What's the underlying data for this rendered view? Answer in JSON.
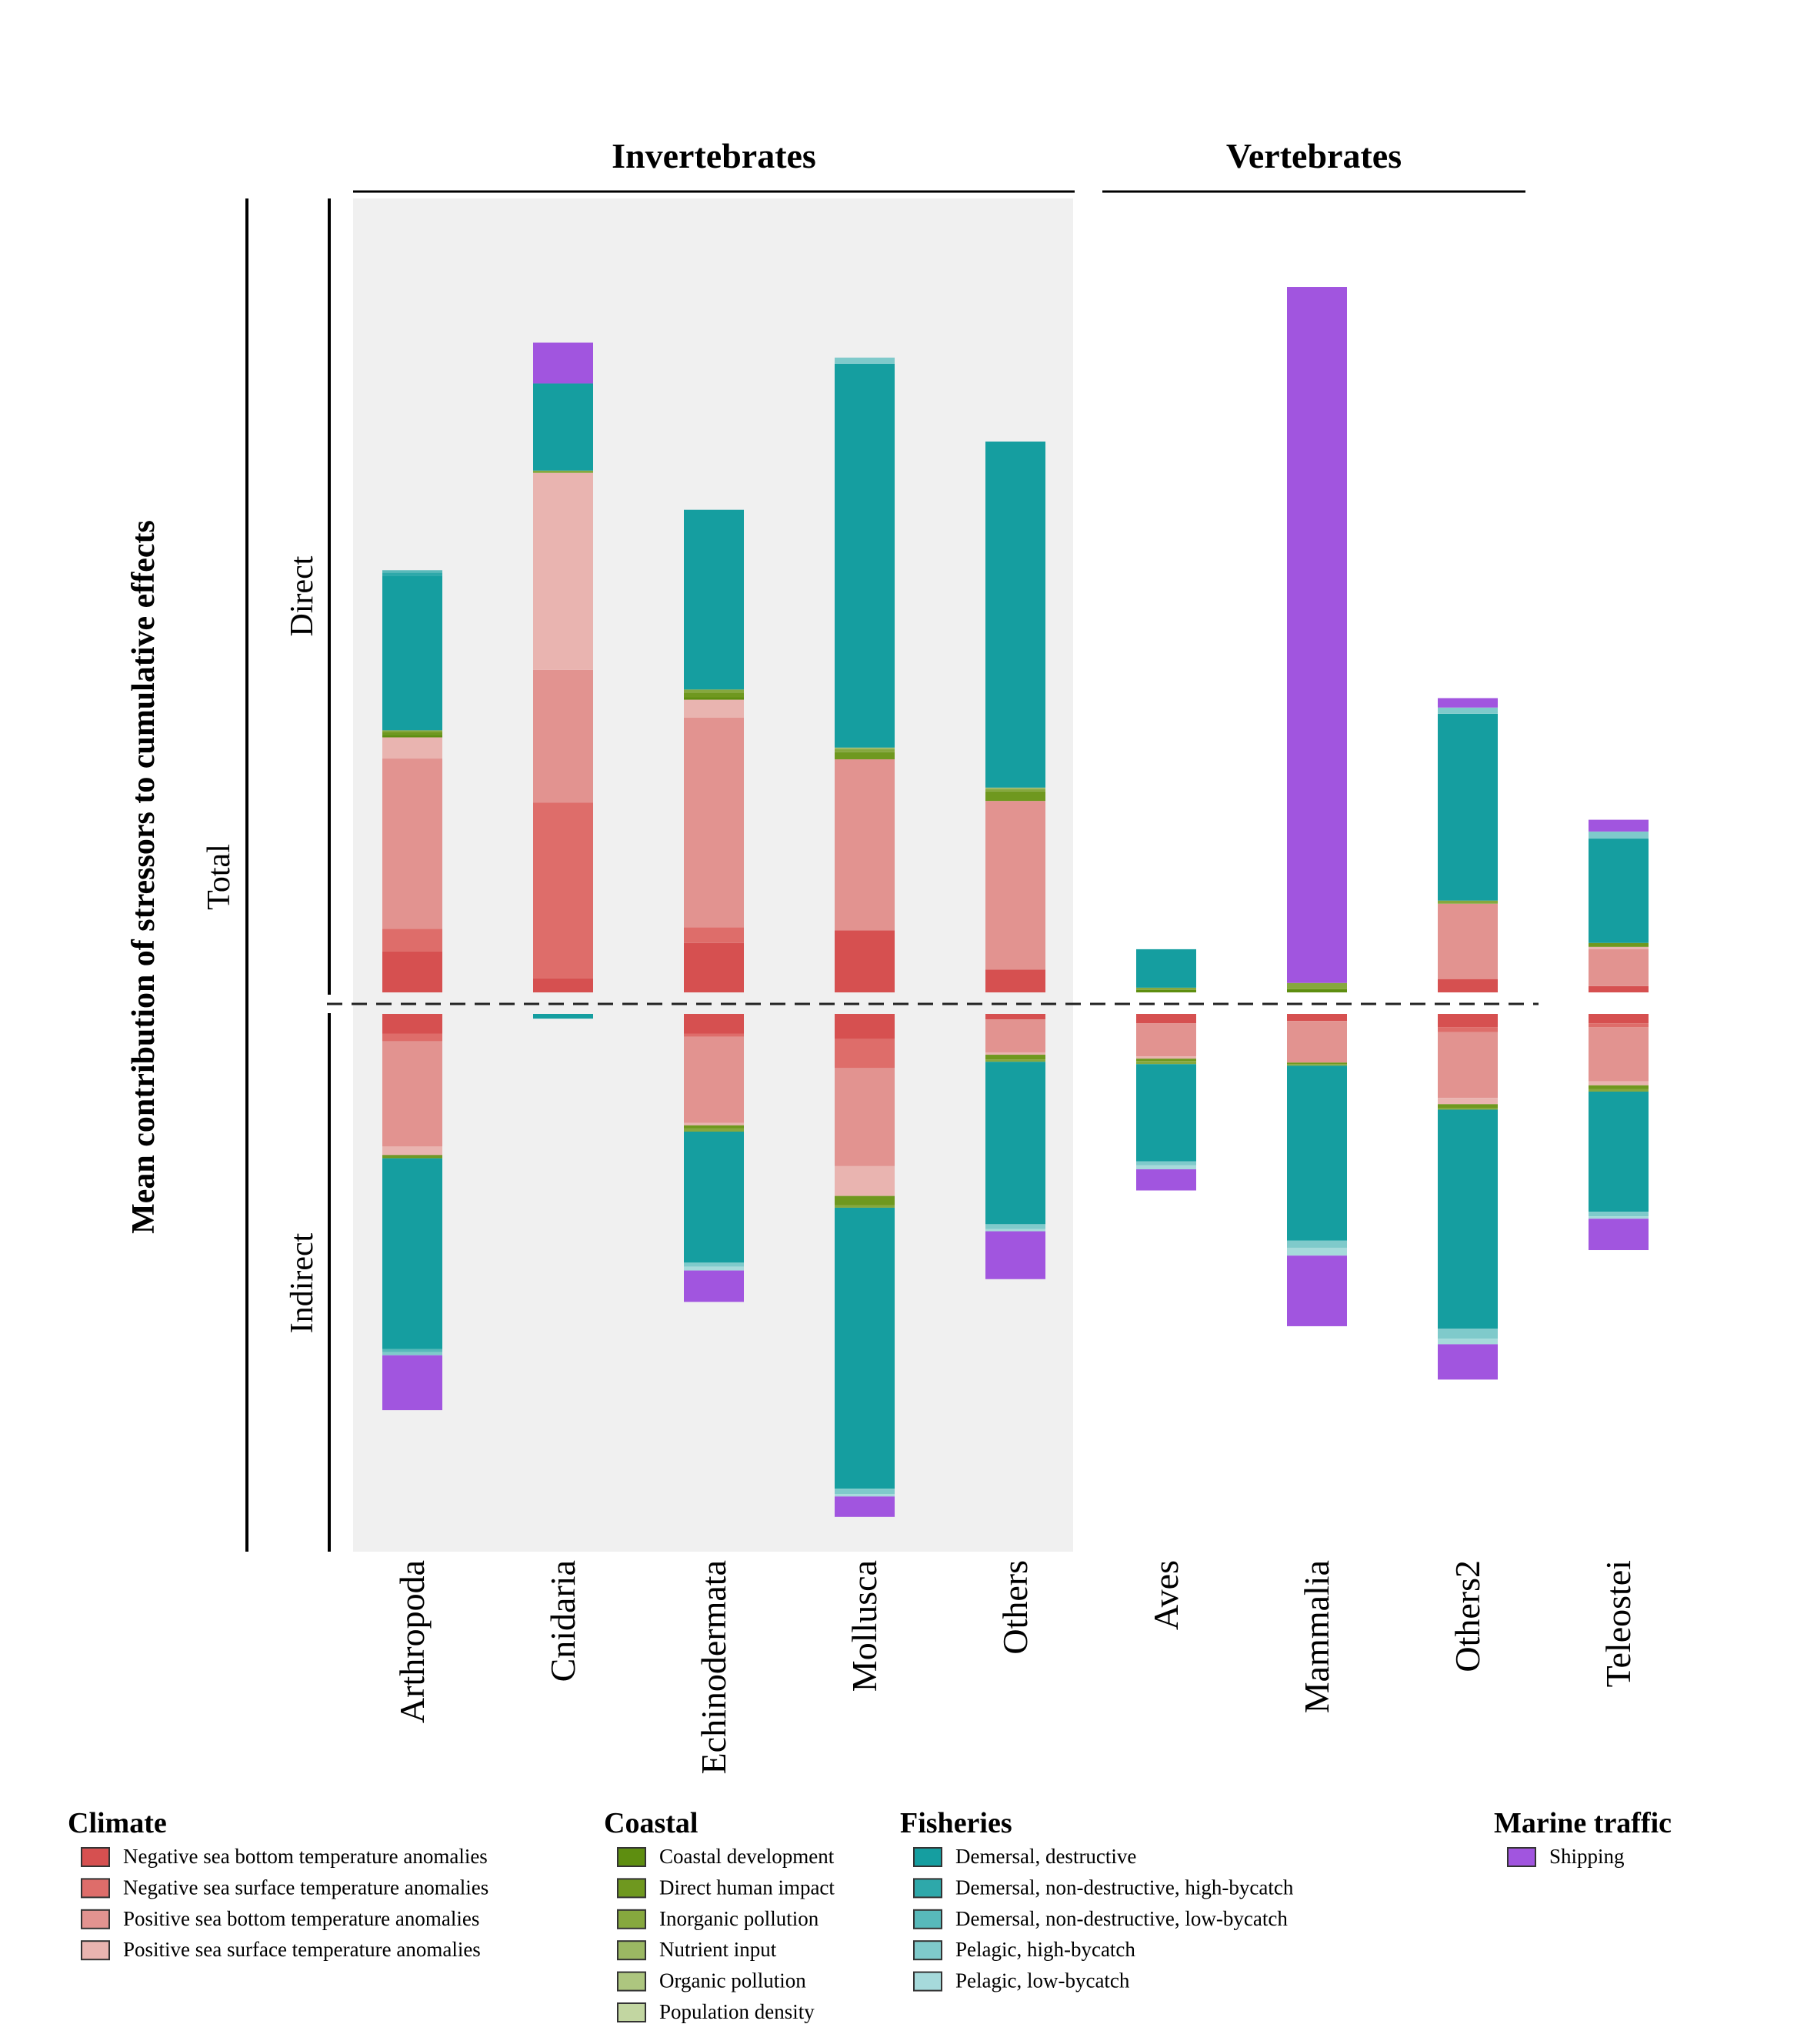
{
  "chart_data": {
    "type": "bar",
    "ylabel": "Mean contribution of stressors to cumulative effects",
    "row_labels": {
      "total": "Total",
      "direct": "Direct",
      "indirect": "Indirect"
    },
    "groups": [
      {
        "name": "Invertebrates",
        "categories": [
          "Arthropoda",
          "Cnidaria",
          "Echinodermata",
          "Mollusca",
          "Others"
        ],
        "shaded": true
      },
      {
        "name": "Vertebrates",
        "categories": [
          "Aves",
          "Mammalia",
          "Others2",
          "Teleostei"
        ],
        "shaded": false
      }
    ],
    "stressors": [
      {
        "key": "nsbt",
        "name": "Negative sea bottom temperature anomalies",
        "color": "#d65050"
      },
      {
        "key": "nsst",
        "name": "Negative sea surface temperature anomalies",
        "color": "#de6d6a"
      },
      {
        "key": "psbt",
        "name": "Positive sea bottom temperature anomalies",
        "color": "#e29390"
      },
      {
        "key": "psst",
        "name": "Positive sea surface temperature anomalies",
        "color": "#e9b4b0"
      },
      {
        "key": "cdev",
        "name": "Coastal development",
        "color": "#5e8e10"
      },
      {
        "key": "dhi",
        "name": "Direct human impact",
        "color": "#6f981f"
      },
      {
        "key": "inorg",
        "name": "Inorganic pollution",
        "color": "#86a83e"
      },
      {
        "key": "nut",
        "name": "Nutrient input",
        "color": "#9bb863"
      },
      {
        "key": "org",
        "name": "Organic pollution",
        "color": "#adc67f"
      },
      {
        "key": "pop",
        "name": "Population density",
        "color": "#c2d6a1"
      },
      {
        "key": "dd",
        "name": "Demersal, destructive",
        "color": "#159ea0"
      },
      {
        "key": "dndhb",
        "name": "Demersal, non-destructive, high-bycatch",
        "color": "#2ea8aa"
      },
      {
        "key": "dndlb",
        "name": "Demersal, non-destructive, low-bycatch",
        "color": "#58b9ba"
      },
      {
        "key": "phb",
        "name": "Pelagic, high-bycatch",
        "color": "#7fcacb"
      },
      {
        "key": "plb",
        "name": "Pelagic, low-bycatch",
        "color": "#a6dadb"
      },
      {
        "key": "ship",
        "name": "Shipping",
        "color": "#a155df"
      }
    ],
    "legend": [
      {
        "title": "Climate",
        "items": [
          "nsbt",
          "nsst",
          "psbt",
          "psst"
        ]
      },
      {
        "title": "Coastal",
        "items": [
          "cdev",
          "dhi",
          "inorg",
          "nut",
          "org",
          "pop"
        ]
      },
      {
        "title": "Fisheries",
        "items": [
          "dd",
          "dndhb",
          "dndlb",
          "phb",
          "plb"
        ]
      },
      {
        "title": "Marine traffic",
        "items": [
          "ship"
        ]
      }
    ],
    "direct": {
      "Arthropoda": {
        "nsbt": 5.2,
        "nsst": 2.9,
        "psbt": 21.7,
        "psst": 2.7,
        "cdev": 0.3,
        "dhi": 0.4,
        "inorg": 0.2,
        "dd": 19.7,
        "dndhb": 0.4,
        "dndlb": 0.3
      },
      "Cnidaria": {
        "nsbt": 1.8,
        "nsst": 22.4,
        "psbt": 16.9,
        "psst": 25.1,
        "inorg": 0.3,
        "dd": 11.1,
        "ship": 5.2
      },
      "Echinodermata": {
        "nsbt": 6.3,
        "nsst": 2.0,
        "psbt": 26.7,
        "psst": 2.3,
        "cdev": 0.3,
        "dhi": 0.6,
        "inorg": 0.4,
        "dd": 22.9
      },
      "Mollusca": {
        "nsbt": 7.9,
        "psbt": 21.8,
        "dhi": 0.9,
        "inorg": 0.4,
        "nut": 0.2,
        "dd": 48.9,
        "phb": 0.8
      },
      "Others": {
        "nsbt": 2.9,
        "psbt": 21.5,
        "dhi": 1.2,
        "inorg": 0.3,
        "nut": 0.2,
        "dd": 44.1
      },
      "Aves": {
        "cdev": 0.3,
        "inorg": 0.3,
        "dd": 4.9
      },
      "Mammalia": {
        "cdev": 0.4,
        "inorg": 0.8,
        "ship": 88.7
      },
      "Others2": {
        "nsbt": 1.7,
        "psbt": 9.6,
        "inorg": 0.4,
        "dd": 23.8,
        "phb": 0.8,
        "ship": 1.2
      },
      "Teleostei": {
        "nsbt": 0.8,
        "psbt": 4.7,
        "psst": 0.3,
        "dhi": 0.5,
        "dd": 13.3,
        "phb": 0.9,
        "ship": 1.5
      }
    },
    "indirect": {
      "Arthropoda": {
        "nsbt": 2.5,
        "nsst": 1.0,
        "psbt": 13.4,
        "psst": 1.1,
        "cdev": 0.2,
        "dhi": 0.2,
        "dd": 24.3,
        "dndlb": 0.4,
        "phb": 0.4,
        "ship": 7.0
      },
      "Cnidaria": {
        "dd": 0.6
      },
      "Echinodermata": {
        "nsbt": 2.5,
        "nsst": 0.4,
        "psbt": 11.0,
        "psst": 0.3,
        "dhi": 0.4,
        "inorg": 0.4,
        "dd": 16.7,
        "phb": 0.5,
        "plb": 0.5,
        "ship": 4.0
      },
      "Mollusca": {
        "nsbt": 3.2,
        "nsst": 3.7,
        "psbt": 12.5,
        "psst": 3.8,
        "dhi": 1.2,
        "inorg": 0.3,
        "dd": 35.8,
        "phb": 0.7,
        "plb": 0.3,
        "ship": 2.6
      },
      "Others": {
        "nsbt": 0.7,
        "psbt": 4.2,
        "psst": 0.3,
        "dhi": 0.6,
        "inorg": 0.3,
        "dd": 20.7,
        "phb": 0.6,
        "plb": 0.3,
        "ship": 6.1
      },
      "Aves": {
        "nsbt": 1.2,
        "psbt": 4.2,
        "psst": 0.3,
        "dhi": 0.3,
        "inorg": 0.4,
        "dd": 12.4,
        "phb": 0.5,
        "plb": 0.5,
        "ship": 2.7
      },
      "Mammalia": {
        "nsbt": 0.9,
        "psbt": 5.3,
        "dhi": 0.2,
        "inorg": 0.2,
        "dd": 22.3,
        "phb": 0.9,
        "plb": 1.0,
        "ship": 9.0
      },
      "Others2": {
        "nsbt": 1.7,
        "nsst": 0.6,
        "psbt": 8.4,
        "psst": 0.8,
        "dhi": 0.5,
        "inorg": 0.2,
        "dd": 27.9,
        "phb": 1.3,
        "plb": 0.7,
        "ship": 4.5
      },
      "Teleostei": {
        "nsbt": 1.2,
        "nsst": 0.5,
        "psbt": 6.9,
        "psst": 0.5,
        "dhi": 0.5,
        "inorg": 0.3,
        "dd": 15.3,
        "phb": 0.6,
        "plb": 0.3,
        "ship": 4.0
      }
    }
  }
}
